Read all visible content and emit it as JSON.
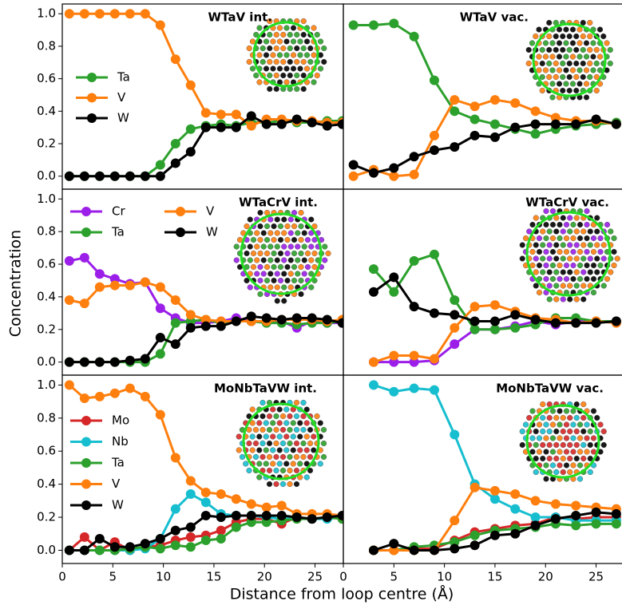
{
  "xlabel": "Distance from loop centre (Å)",
  "ylabel": "Concentration",
  "chart_data": [
    {
      "type": "line",
      "title": "WTaV int.",
      "legend": "center left",
      "x": [
        0.7,
        2.2,
        3.7,
        5.2,
        6.7,
        8.2,
        9.7,
        11.2,
        12.7,
        14.2,
        15.7,
        17.2,
        18.7,
        20.2,
        21.7,
        23.2,
        24.7,
        26.2,
        27.7
      ],
      "xlim": [
        0,
        27.8
      ],
      "ylim": [
        -0.08,
        1.06
      ],
      "yticks": [
        {
          "value": 0,
          "label": "0.0"
        },
        0.2,
        0.4,
        0.6,
        0.8,
        {
          "value": 1,
          "label": "1.0"
        }
      ],
      "series": [
        {
          "name": "Ta",
          "color": "#2ca02c",
          "values": [
            0,
            0,
            0,
            0,
            0,
            0,
            0.07,
            0.2,
            0.29,
            0.31,
            0.32,
            0.31,
            0.33,
            0.33,
            0.34,
            0.33,
            0.33,
            0.34,
            0.34
          ]
        },
        {
          "name": "V",
          "color": "#ff7f0e",
          "values": [
            1,
            1,
            1,
            1,
            1,
            1,
            0.93,
            0.72,
            0.56,
            0.39,
            0.38,
            0.38,
            0.31,
            0.35,
            0.35,
            0.34,
            0.34,
            0.33,
            0.33
          ]
        },
        {
          "name": "W",
          "color": "#000000",
          "values": [
            0,
            0,
            0,
            0,
            0,
            0,
            0,
            0.08,
            0.15,
            0.3,
            0.3,
            0.3,
            0.37,
            0.32,
            0.32,
            0.35,
            0.33,
            0.31,
            0.32
          ]
        }
      ]
    },
    {
      "type": "line",
      "title": "WTaV vac.",
      "x": [
        1,
        3,
        5,
        7,
        9,
        11,
        13,
        15,
        17,
        19,
        21,
        23,
        25,
        27
      ],
      "xlim": [
        0,
        27.8
      ],
      "ylim": [
        -0.08,
        1.06
      ],
      "series": [
        {
          "name": "Ta",
          "color": "#2ca02c",
          "values": [
            0.93,
            0.93,
            0.94,
            0.86,
            0.59,
            0.4,
            0.35,
            0.32,
            0.29,
            0.26,
            0.29,
            0.31,
            0.32,
            0.33
          ]
        },
        {
          "name": "V",
          "color": "#ff7f0e",
          "values": [
            0,
            0.04,
            0,
            0.01,
            0.25,
            0.47,
            0.43,
            0.47,
            0.45,
            0.4,
            0.36,
            0.34,
            0.34,
            0.32
          ]
        },
        {
          "name": "W",
          "color": "#000000",
          "values": [
            0.07,
            0.02,
            0.05,
            0.12,
            0.16,
            0.18,
            0.25,
            0.24,
            0.3,
            0.32,
            0.32,
            0.32,
            0.35,
            0.32
          ]
        }
      ]
    },
    {
      "type": "line",
      "title": "WTaCrV int.",
      "legend": "upper left",
      "legend_ncol": 2,
      "x": [
        0.7,
        2.2,
        3.7,
        5.2,
        6.7,
        8.2,
        9.7,
        11.2,
        12.7,
        14.2,
        15.7,
        17.2,
        18.7,
        20.2,
        21.7,
        23.2,
        24.7,
        26.2,
        27.7
      ],
      "xlim": [
        0,
        27.8
      ],
      "ylim": [
        -0.08,
        1.06
      ],
      "yticks": [
        {
          "value": 0,
          "label": "0.0"
        },
        0.2,
        0.4,
        0.6,
        0.8,
        {
          "value": 1,
          "label": "1.0"
        }
      ],
      "series": [
        {
          "name": "Cr",
          "color": "#9b1fe8",
          "values": [
            0.62,
            0.64,
            0.54,
            0.51,
            0.48,
            0.49,
            0.33,
            0.27,
            0.24,
            0.24,
            0.25,
            0.27,
            0.25,
            0.25,
            0.25,
            0.21,
            0.25,
            0.24,
            0.24
          ]
        },
        {
          "name": "Ta",
          "color": "#2ca02c",
          "values": [
            0,
            0,
            0,
            0,
            0,
            0,
            0.05,
            0.24,
            0.25,
            0.26,
            0.24,
            0.25,
            0.25,
            0.24,
            0.24,
            0.23,
            0.24,
            0.24,
            0.25
          ]
        },
        {
          "name": "V",
          "color": "#ff7f0e",
          "values": [
            0.38,
            0.36,
            0.46,
            0.47,
            0.47,
            0.49,
            0.46,
            0.38,
            0.29,
            0.26,
            0.25,
            0.25,
            0.25,
            0.25,
            0.26,
            0.26,
            0.26,
            0.25,
            0.26
          ]
        },
        {
          "name": "W",
          "color": "#000000",
          "values": [
            0,
            0,
            0,
            0,
            0.01,
            0.02,
            0.15,
            0.11,
            0.21,
            0.22,
            0.22,
            0.25,
            0.28,
            0.27,
            0.26,
            0.27,
            0.27,
            0.26,
            0.24
          ]
        }
      ]
    },
    {
      "type": "line",
      "title": "WTaCrV vac.",
      "x": [
        3,
        5,
        7,
        9,
        11,
        13,
        15,
        17,
        19,
        21,
        23,
        25,
        27
      ],
      "xlim": [
        0,
        27.8
      ],
      "ylim": [
        -0.08,
        1.06
      ],
      "series": [
        {
          "name": "Cr",
          "color": "#9b1fe8",
          "values": [
            0,
            0,
            0,
            0.01,
            0.11,
            0.2,
            0.2,
            0.22,
            0.25,
            0.23,
            0.25,
            0.25,
            0.25
          ]
        },
        {
          "name": "Ta",
          "color": "#2ca02c",
          "values": [
            0.57,
            0.43,
            0.62,
            0.66,
            0.38,
            0.2,
            0.2,
            0.21,
            0.23,
            0.27,
            0.27,
            0.25,
            0.25
          ]
        },
        {
          "name": "V",
          "color": "#ff7f0e",
          "values": [
            0,
            0.04,
            0.04,
            0.02,
            0.21,
            0.34,
            0.35,
            0.31,
            0.27,
            0.26,
            0.24,
            0.25,
            0.24
          ]
        },
        {
          "name": "W",
          "color": "#000000",
          "values": [
            0.43,
            0.52,
            0.34,
            0.3,
            0.29,
            0.25,
            0.25,
            0.29,
            0.26,
            0.24,
            0.24,
            0.24,
            0.25
          ]
        }
      ]
    },
    {
      "type": "line",
      "title": "MoNbTaVW int.",
      "legend": "center left",
      "x": [
        0.7,
        2.2,
        3.7,
        5.2,
        6.7,
        8.2,
        9.7,
        11.2,
        12.7,
        14.2,
        15.7,
        17.2,
        18.7,
        20.2,
        21.7,
        23.2,
        24.7,
        26.2,
        27.7
      ],
      "xlim": [
        0,
        27.8
      ],
      "ylim": [
        -0.08,
        1.06
      ],
      "xticks": [
        0,
        5,
        10,
        15,
        20,
        25
      ],
      "yticks": [
        {
          "value": 0,
          "label": "0.0"
        },
        0.2,
        0.4,
        0.6,
        0.8,
        {
          "value": 1,
          "label": "1.0"
        }
      ],
      "series": [
        {
          "name": "Mo",
          "color": "#d62728",
          "values": [
            0,
            0.08,
            0,
            0.05,
            0,
            0.02,
            0.03,
            0.06,
            0.08,
            0.09,
            0.12,
            0.17,
            0.19,
            0.19,
            0.16,
            0.2,
            0.19,
            0.2,
            0.19
          ]
        },
        {
          "name": "Nb",
          "color": "#17becf",
          "values": [
            0,
            0,
            0,
            0,
            0,
            0.01,
            0.07,
            0.25,
            0.34,
            0.29,
            0.22,
            0.21,
            0.21,
            0.2,
            0.19,
            0.2,
            0.19,
            0.19,
            0.2
          ]
        },
        {
          "name": "Ta",
          "color": "#2ca02c",
          "values": [
            0,
            0,
            0,
            0,
            0.01,
            0.02,
            0.01,
            0.03,
            0.02,
            0.06,
            0.07,
            0.14,
            0.17,
            0.17,
            0.18,
            0.19,
            0.19,
            0.2,
            0.19
          ]
        },
        {
          "name": "V",
          "color": "#ff7f0e",
          "values": [
            1,
            0.92,
            0.93,
            0.95,
            0.98,
            0.93,
            0.82,
            0.56,
            0.42,
            0.35,
            0.34,
            0.31,
            0.28,
            0.26,
            0.27,
            0.22,
            0.22,
            0.22,
            0.21
          ]
        },
        {
          "name": "W",
          "color": "#000000",
          "values": [
            0,
            0,
            0.07,
            0.02,
            0.02,
            0.04,
            0.07,
            0.12,
            0.14,
            0.21,
            0.2,
            0.21,
            0.21,
            0.21,
            0.21,
            0.2,
            0.19,
            0.2,
            0.21
          ]
        }
      ]
    },
    {
      "type": "line",
      "title": "MoNbTaVW vac.",
      "x": [
        3,
        5,
        7,
        9,
        11,
        13,
        15,
        17,
        19,
        21,
        23,
        25,
        27
      ],
      "xlim": [
        0,
        27.8
      ],
      "ylim": [
        -0.08,
        1.06
      ],
      "xticks": [
        0,
        5,
        10,
        15,
        20,
        25
      ],
      "series": [
        {
          "name": "Mo",
          "color": "#d62728",
          "values": [
            0,
            0,
            0.01,
            0.01,
            0.06,
            0.11,
            0.13,
            0.15,
            0.16,
            0.2,
            0.19,
            0.2,
            0.2
          ]
        },
        {
          "name": "Nb",
          "color": "#17becf",
          "values": [
            1,
            0.96,
            0.98,
            0.97,
            0.7,
            0.4,
            0.31,
            0.25,
            0.2,
            0.2,
            0.18,
            0.18,
            0.18
          ]
        },
        {
          "name": "Ta",
          "color": "#2ca02c",
          "values": [
            0,
            0,
            0.02,
            0.03,
            0.05,
            0.09,
            0.12,
            0.13,
            0.14,
            0.16,
            0.15,
            0.16,
            0.16
          ]
        },
        {
          "name": "V",
          "color": "#ff7f0e",
          "values": [
            0,
            0,
            0,
            0,
            0.18,
            0.38,
            0.36,
            0.34,
            0.3,
            0.28,
            0.27,
            0.26,
            0.25
          ]
        },
        {
          "name": "W",
          "color": "#000000",
          "values": [
            0,
            0.04,
            0,
            0,
            0.01,
            0.03,
            0.09,
            0.1,
            0.15,
            0.19,
            0.21,
            0.23,
            0.22
          ]
        }
      ]
    }
  ]
}
